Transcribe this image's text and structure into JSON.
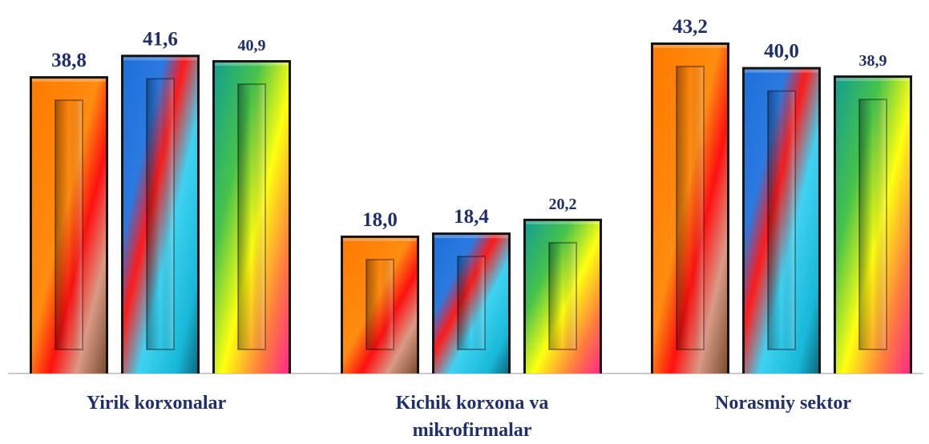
{
  "chart_data": {
    "type": "bar",
    "categories": [
      "Yirik korxonalar",
      "Kichik korxona va mikrofirmalar",
      "Norasmiy sektor"
    ],
    "series": [
      {
        "values": [
          38.8,
          18.0,
          43.2
        ]
      },
      {
        "values": [
          41.6,
          18.4,
          40.0
        ]
      },
      {
        "values": [
          40.9,
          20.2,
          38.9
        ]
      }
    ],
    "value_labels": [
      [
        "38,8",
        "41,6",
        "40,9"
      ],
      [
        "18,0",
        "18,4",
        "20,2"
      ],
      [
        "43,2",
        "40,0",
        "38,9"
      ]
    ],
    "category_labels": [
      {
        "lines": [
          "Yirik korxonalar"
        ]
      },
      {
        "lines": [
          "Kichik korxona va",
          "mikrofirmalar"
        ]
      },
      {
        "lines": [
          "Norasmiy sektor"
        ]
      }
    ],
    "ylim": [
      0,
      43.2
    ],
    "legend": "none",
    "grid": false,
    "colors": {
      "orange": "#ff7a00",
      "blue": "#1e6fd9",
      "teal": "#139f8f",
      "label": "#1f2f6b"
    }
  }
}
